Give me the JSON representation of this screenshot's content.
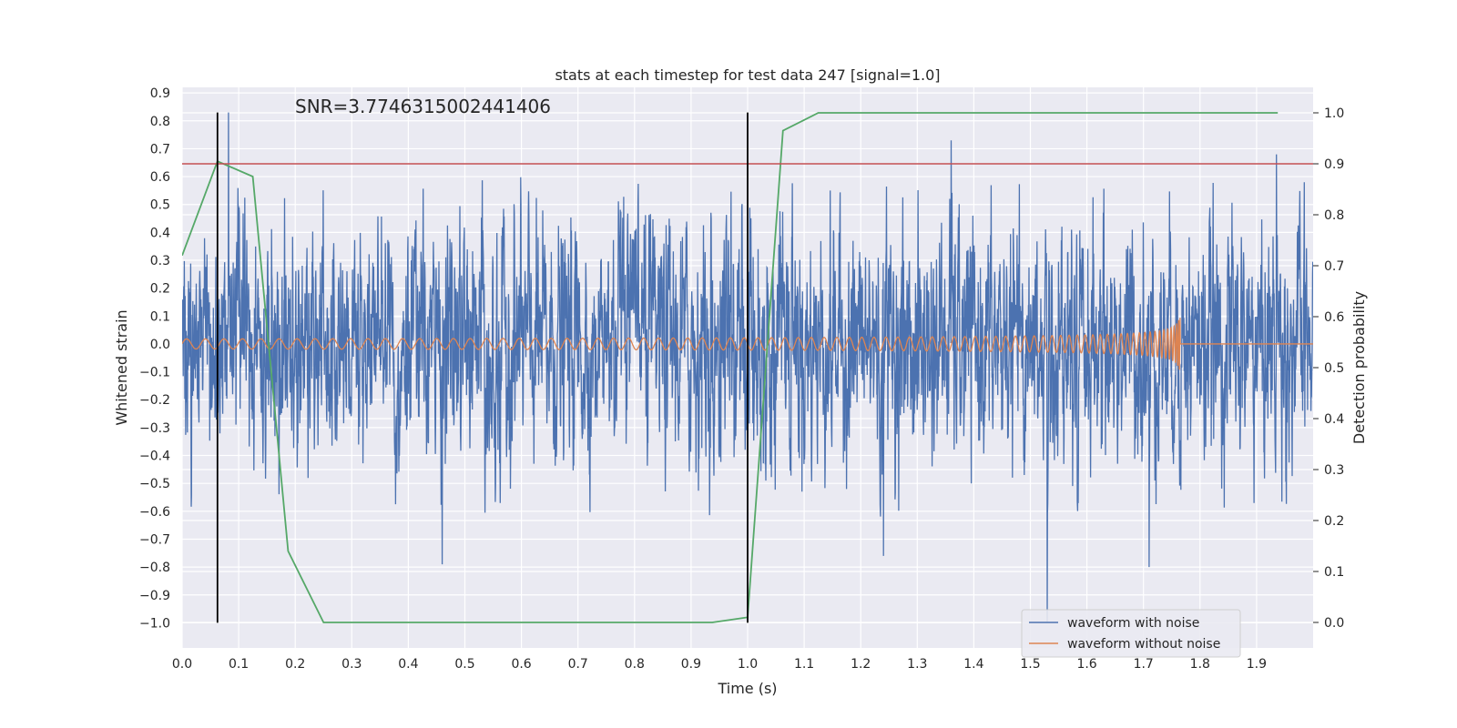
{
  "chart_data": {
    "type": "line",
    "title": "stats at each timestep for test data 247 [signal=1.0]",
    "xlabel": "Time (s)",
    "ylabel": "Whitened strain",
    "y2label": "Detection probability",
    "annotation": "SNR=3.7746315002441406",
    "xlim": [
      0.0,
      2.0
    ],
    "ylim": [
      -1.09,
      0.92
    ],
    "y2lim": [
      -0.05,
      1.05
    ],
    "xticks": [
      0.0,
      0.1,
      0.2,
      0.3,
      0.4,
      0.5,
      0.6,
      0.7,
      0.8,
      0.9,
      1.0,
      1.1,
      1.2,
      1.3,
      1.4,
      1.5,
      1.6,
      1.7,
      1.8,
      1.9
    ],
    "xtick_labels": [
      "0.0",
      "0.1",
      "0.2",
      "0.3",
      "0.4",
      "0.5",
      "0.6",
      "0.7",
      "0.8",
      "0.9",
      "1.0",
      "1.1",
      "1.2",
      "1.3",
      "1.4",
      "1.5",
      "1.6",
      "1.7",
      "1.8",
      "1.9"
    ],
    "yticks": [
      0.9,
      0.8,
      0.7,
      0.6,
      0.5,
      0.4,
      0.3,
      0.2,
      0.1,
      0.0,
      -0.1,
      -0.2,
      -0.3,
      -0.4,
      -0.5,
      -0.6,
      -0.7,
      -0.8,
      -0.9,
      -1.0
    ],
    "ytick_labels": [
      "0.9",
      "0.8",
      "0.7",
      "0.6",
      "0.5",
      "0.4",
      "0.3",
      "0.2",
      "0.1",
      "0.0",
      "−0.1",
      "−0.2",
      "−0.3",
      "−0.4",
      "−0.5",
      "−0.6",
      "−0.7",
      "−0.8",
      "−0.9",
      "−1.0"
    ],
    "y2ticks": [
      1.0,
      0.9,
      0.8,
      0.7,
      0.6,
      0.5,
      0.4,
      0.3,
      0.2,
      0.1,
      0.0
    ],
    "y2tick_labels": [
      "1.0",
      "0.9",
      "0.8",
      "0.7",
      "0.6",
      "0.5",
      "0.4",
      "0.3",
      "0.2",
      "0.1",
      "0.0"
    ],
    "grid": true,
    "legend_placement": "lower-right",
    "series": [
      {
        "name": "waveform with noise",
        "color": "#4c72b0",
        "axis": "left",
        "sample_rate": 2048,
        "t_start": 0.0,
        "t_end": 2.0,
        "std": 0.2,
        "peaks": [
          {
            "x": 0.082,
            "y": 0.83
          },
          {
            "x": 1.36,
            "y": 0.73
          },
          {
            "x": 1.935,
            "y": 0.68
          },
          {
            "x": 0.46,
            "y": -0.79
          },
          {
            "x": 1.53,
            "y": -1.0
          },
          {
            "x": 1.71,
            "y": -0.8
          },
          {
            "x": 1.24,
            "y": -0.76
          }
        ]
      },
      {
        "name": "waveform without noise",
        "color": "#dd8452",
        "axis": "left",
        "chirp_f0": 30,
        "chirp_merger_time": 1.765,
        "amplitude_start": 0.018,
        "amplitude_peak": 0.1
      },
      {
        "name": "Detection probability",
        "color": "#55a868",
        "axis": "right",
        "x": [
          0.0,
          0.0625,
          0.125,
          0.1875,
          0.25,
          0.3125,
          0.375,
          0.4375,
          0.5,
          0.5625,
          0.625,
          0.6875,
          0.75,
          0.8125,
          0.875,
          0.9375,
          1.0,
          1.0625,
          1.125,
          1.1875,
          1.25,
          1.3125,
          1.375,
          1.4375,
          1.5,
          1.5625,
          1.625,
          1.6875,
          1.75,
          1.8125,
          1.875,
          1.9375
        ],
        "values": [
          0.72,
          0.905,
          0.875,
          0.14,
          0.0,
          0.0,
          0.0,
          0.0,
          0.0,
          0.0,
          0.0,
          0.0,
          0.0,
          0.0,
          0.0,
          0.0,
          0.01,
          0.965,
          1.0,
          1.0,
          1.0,
          1.0,
          1.0,
          1.0,
          1.0,
          1.0,
          1.0,
          1.0,
          1.0,
          1.0,
          1.0,
          1.0
        ]
      }
    ],
    "threshold": {
      "y2": 0.9,
      "color": "#c44e52"
    },
    "markers": [
      {
        "x": 0.0625,
        "y_from": -1.0,
        "y_to": 0.83,
        "color": "#000000"
      },
      {
        "x": 1.0,
        "y_from": -1.0,
        "y_to": 0.83,
        "color": "#000000"
      }
    ]
  }
}
